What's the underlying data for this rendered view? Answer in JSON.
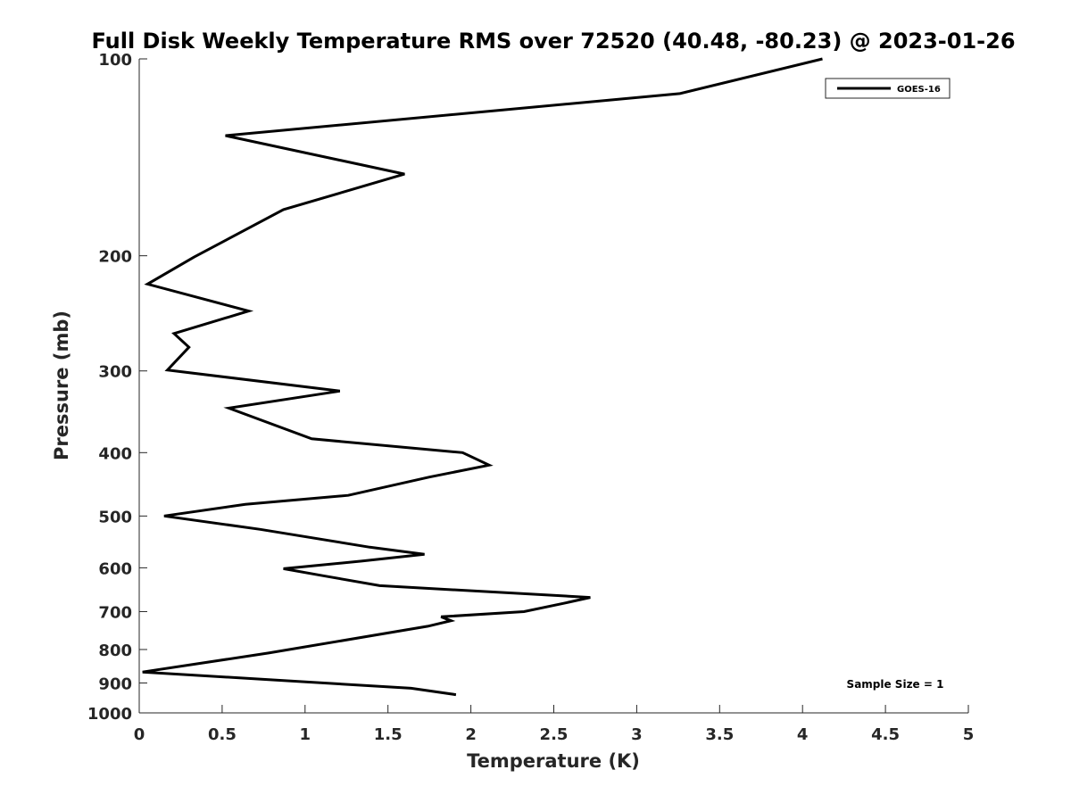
{
  "chart_data": {
    "type": "line",
    "title": "Full Disk Weekly Temperature RMS over 72520 (40.48, -80.23) @ 2023-01-26",
    "xlabel": "Temperature (K)",
    "ylabel": "Pressure (mb)",
    "xlim": [
      0,
      5
    ],
    "ylim": [
      100,
      1000
    ],
    "yscale": "log",
    "y_reversed": true,
    "grid": false,
    "x_ticks": [
      0,
      0.5,
      1,
      1.5,
      2,
      2.5,
      3,
      3.5,
      4,
      4.5,
      5
    ],
    "x_tick_labels": [
      "0",
      "0.5",
      "1",
      "1.5",
      "2",
      "2.5",
      "3",
      "3.5",
      "4",
      "4.5",
      "5"
    ],
    "y_ticks": [
      100,
      200,
      300,
      400,
      500,
      600,
      700,
      800,
      900,
      1000
    ],
    "y_tick_labels": [
      "100",
      "200",
      "300",
      "400",
      "500",
      "600",
      "700",
      "800",
      "900",
      "1000"
    ],
    "legend_position": "top-right",
    "series": [
      {
        "name": "GOES-16",
        "color": "#000000",
        "x": [
          4.12,
          3.26,
          0.52,
          1.6,
          0.87,
          0.33,
          0.05,
          0.66,
          0.21,
          0.3,
          0.17,
          1.21,
          0.54,
          1.04,
          1.95,
          2.11,
          1.75,
          1.26,
          0.64,
          0.15,
          0.73,
          1.39,
          1.72,
          1.34,
          0.87,
          1.11,
          1.45,
          2.72,
          2.56,
          2.32,
          1.82,
          1.88,
          1.74,
          0.78,
          0.02,
          1.64,
          1.91
        ],
        "y": [
          100,
          113,
          131,
          150,
          170,
          201,
          221,
          243,
          263,
          276,
          299,
          322,
          342,
          381,
          400,
          418,
          436,
          465,
          480,
          500,
          524,
          558,
          572,
          586,
          602,
          617,
          639,
          666,
          680,
          700,
          713,
          723,
          737,
          810,
          866,
          917,
          938
        ]
      }
    ],
    "annotations": [
      "Sample Size = 1"
    ]
  }
}
